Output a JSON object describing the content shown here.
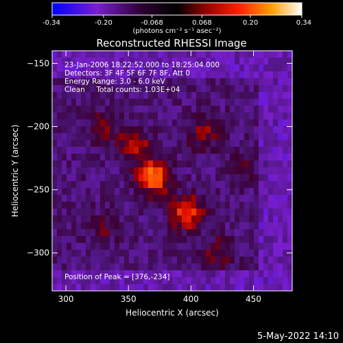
{
  "chart_data": {
    "type": "heatmap",
    "title": "Reconstructed RHESSI Image",
    "xlabel": "Heliocentric X (arcsec)",
    "ylabel": "Heliocentric Y (arcsec)",
    "xlim": [
      289,
      481
    ],
    "ylim": [
      -330,
      -140
    ],
    "xticks": [
      300,
      350,
      400,
      450
    ],
    "yticks": [
      -150,
      -200,
      -250,
      -300
    ],
    "colorbar": {
      "min": -0.34,
      "max": 0.34,
      "ticks": [
        "-0.34",
        "-0.20",
        "-0.068",
        "0.068",
        "0.20",
        "0.34"
      ],
      "label": "(photons cm⁻² s⁻¹ asec⁻²)"
    },
    "annotations": [
      "23-Jan-2006 18:22:52.000 to 18:25:04.000",
      "Detectors: 3F 4F 5F 6F 7F 8F, Att 0",
      "Energy Range: 3.0 - 6.0 keV",
      "Clean     Total counts: 1.03E+04"
    ],
    "peak_label": "Position of Peak = [376,-234]",
    "peak": [
      376,
      -234
    ],
    "sources": [
      {
        "x": 370,
        "y": -240,
        "value": 0.34
      },
      {
        "x": 397,
        "y": -268,
        "value": 0.27
      },
      {
        "x": 355,
        "y": -215,
        "value": 0.18
      },
      {
        "x": 410,
        "y": -205,
        "value": 0.14
      },
      {
        "x": 420,
        "y": -300,
        "value": 0.12
      },
      {
        "x": 330,
        "y": -200,
        "value": 0.1
      },
      {
        "x": 330,
        "y": -280,
        "value": 0.08
      },
      {
        "x": 445,
        "y": -230,
        "value": 0.07
      }
    ],
    "colors": [
      "#0000ff",
      "#6a22c0",
      "#5a2a8f",
      "#b00000",
      "#ff2000",
      "#ff7a00",
      "#ffd040",
      "#ffffc0"
    ]
  },
  "footer": {
    "date": "5-May-2022 14:10"
  }
}
